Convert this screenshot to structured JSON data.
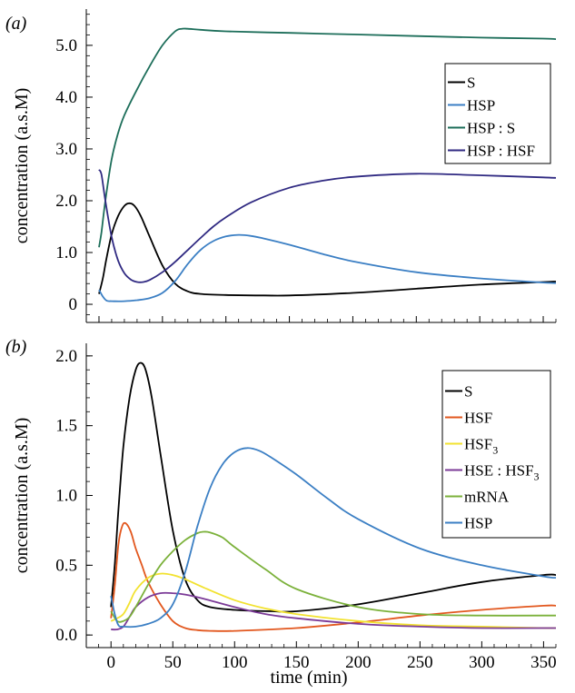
{
  "figure": {
    "xlabel": "time (min)"
  },
  "chart_data": [
    {
      "panel_label": "(a)",
      "type": "line",
      "ylabel": "concentration (a.s.M)",
      "xlim": [
        -10,
        360
      ],
      "ylim": [
        -0.35,
        5.7
      ],
      "yticks": [
        "0",
        "1.0",
        "2.0",
        "3.0",
        "4.0",
        "5.0"
      ],
      "ytick_values": [
        0,
        1,
        2,
        3,
        4,
        5
      ],
      "xtick_values": [
        0,
        50,
        100,
        150,
        200,
        250,
        300,
        350
      ],
      "x_tick_labels_shown": false,
      "legend_position": "top-right",
      "series": [
        {
          "name": "S",
          "color": "#000000",
          "x": [
            0,
            3,
            6,
            10,
            15,
            20,
            24,
            28,
            33,
            40,
            50,
            60,
            70,
            80,
            100,
            130,
            150,
            200,
            250,
            300,
            350,
            360
          ],
          "y": [
            0.2,
            0.5,
            0.9,
            1.35,
            1.7,
            1.9,
            1.95,
            1.9,
            1.7,
            1.3,
            0.75,
            0.4,
            0.25,
            0.2,
            0.18,
            0.17,
            0.17,
            0.22,
            0.3,
            0.38,
            0.43,
            0.44
          ]
        },
        {
          "name": "HSP",
          "color": "#3b7fc4",
          "x": [
            0,
            3,
            6,
            10,
            20,
            30,
            40,
            50,
            60,
            70,
            80,
            90,
            100,
            110,
            120,
            130,
            150,
            175,
            200,
            250,
            300,
            350,
            360
          ],
          "y": [
            0.28,
            0.15,
            0.07,
            0.06,
            0.06,
            0.08,
            0.12,
            0.22,
            0.45,
            0.78,
            1.05,
            1.22,
            1.31,
            1.34,
            1.32,
            1.27,
            1.15,
            0.98,
            0.83,
            0.62,
            0.5,
            0.42,
            0.41
          ]
        },
        {
          "name": "HSP : S",
          "color": "#1d6e5a",
          "x": [
            0,
            2,
            5,
            10,
            15,
            20,
            30,
            40,
            50,
            60,
            65,
            70,
            80,
            100,
            150,
            200,
            250,
            300,
            350,
            360
          ],
          "y": [
            1.1,
            1.4,
            2.0,
            2.8,
            3.3,
            3.65,
            4.15,
            4.6,
            5.0,
            5.27,
            5.32,
            5.32,
            5.3,
            5.27,
            5.24,
            5.21,
            5.18,
            5.15,
            5.13,
            5.12
          ]
        },
        {
          "name": "HSP : HSF",
          "color": "#302a82",
          "x": [
            0,
            2,
            5,
            10,
            15,
            20,
            25,
            30,
            35,
            40,
            50,
            60,
            70,
            80,
            90,
            100,
            120,
            150,
            175,
            200,
            250,
            300,
            350,
            360
          ],
          "y": [
            2.6,
            2.5,
            2.0,
            1.3,
            0.85,
            0.6,
            0.48,
            0.43,
            0.43,
            0.47,
            0.62,
            0.82,
            1.05,
            1.28,
            1.5,
            1.68,
            1.97,
            2.25,
            2.38,
            2.46,
            2.52,
            2.49,
            2.45,
            2.44
          ]
        }
      ]
    },
    {
      "panel_label": "(b)",
      "type": "line",
      "ylabel": "concentration (a.s.M)",
      "xlabel": "time (min)",
      "xlim": [
        -20,
        360
      ],
      "ylim": [
        -0.09,
        2.09
      ],
      "yticks": [
        "0.0",
        "0.5",
        "1.0",
        "1.5",
        "2.0"
      ],
      "ytick_values": [
        0,
        0.5,
        1,
        1.5,
        2
      ],
      "xticks": [
        "0",
        "50",
        "100",
        "150",
        "200",
        "250",
        "300",
        "350"
      ],
      "xtick_values": [
        0,
        50,
        100,
        150,
        200,
        250,
        300,
        350
      ],
      "legend_position": "top-right",
      "series": [
        {
          "name": "S",
          "color": "#000000",
          "x": [
            0,
            3,
            6,
            10,
            15,
            20,
            24,
            28,
            33,
            40,
            50,
            60,
            70,
            80,
            100,
            130,
            150,
            200,
            250,
            300,
            350,
            360
          ],
          "y": [
            0.2,
            0.5,
            0.9,
            1.35,
            1.7,
            1.9,
            1.95,
            1.9,
            1.7,
            1.3,
            0.75,
            0.4,
            0.25,
            0.2,
            0.18,
            0.17,
            0.17,
            0.22,
            0.3,
            0.38,
            0.43,
            0.43
          ]
        },
        {
          "name": "HSF",
          "color": "#e2571e",
          "x": [
            0,
            3,
            6,
            9,
            12,
            16,
            20,
            25,
            30,
            40,
            50,
            60,
            70,
            80,
            100,
            150,
            200,
            250,
            300,
            350,
            360
          ],
          "y": [
            0.12,
            0.35,
            0.65,
            0.78,
            0.8,
            0.74,
            0.62,
            0.5,
            0.38,
            0.22,
            0.1,
            0.05,
            0.035,
            0.03,
            0.03,
            0.05,
            0.09,
            0.14,
            0.18,
            0.21,
            0.21
          ]
        },
        {
          "name": "HSF3",
          "color": "#f2e230",
          "x": [
            0,
            5,
            10,
            15,
            20,
            30,
            40,
            50,
            60,
            75,
            100,
            125,
            150,
            200,
            250,
            300,
            350,
            360
          ],
          "y": [
            0.1,
            0.12,
            0.15,
            0.23,
            0.32,
            0.41,
            0.44,
            0.43,
            0.4,
            0.34,
            0.25,
            0.19,
            0.15,
            0.1,
            0.07,
            0.06,
            0.05,
            0.05
          ]
        },
        {
          "name": "HSE : HSF3",
          "color": "#7b3a97",
          "x": [
            0,
            5,
            10,
            15,
            20,
            30,
            40,
            50,
            60,
            75,
            100,
            125,
            150,
            200,
            250,
            300,
            350,
            360
          ],
          "y": [
            0.04,
            0.04,
            0.06,
            0.13,
            0.2,
            0.27,
            0.3,
            0.3,
            0.29,
            0.26,
            0.2,
            0.15,
            0.12,
            0.08,
            0.06,
            0.05,
            0.05,
            0.05
          ]
        },
        {
          "name": "mRNA",
          "color": "#7bb13a",
          "x": [
            0,
            5,
            10,
            15,
            20,
            30,
            40,
            50,
            60,
            70,
            75,
            80,
            90,
            100,
            125,
            150,
            200,
            250,
            300,
            350,
            360
          ],
          "y": [
            0.17,
            0.1,
            0.1,
            0.13,
            0.2,
            0.36,
            0.5,
            0.6,
            0.68,
            0.73,
            0.74,
            0.735,
            0.7,
            0.63,
            0.47,
            0.33,
            0.2,
            0.15,
            0.14,
            0.14,
            0.14
          ]
        },
        {
          "name": "HSP",
          "color": "#3b7fc4",
          "x": [
            0,
            3,
            6,
            10,
            20,
            30,
            40,
            50,
            60,
            70,
            80,
            90,
            100,
            110,
            120,
            130,
            150,
            175,
            200,
            250,
            300,
            350,
            360
          ],
          "y": [
            0.28,
            0.15,
            0.07,
            0.06,
            0.06,
            0.08,
            0.12,
            0.22,
            0.45,
            0.78,
            1.05,
            1.22,
            1.31,
            1.34,
            1.32,
            1.27,
            1.15,
            0.98,
            0.83,
            0.62,
            0.5,
            0.42,
            0.41
          ]
        }
      ]
    }
  ]
}
